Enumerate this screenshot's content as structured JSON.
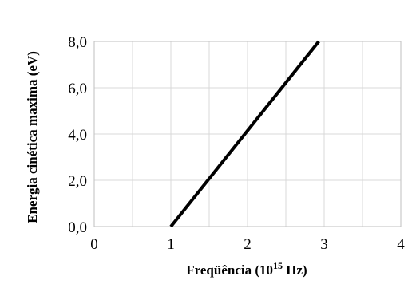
{
  "chart_data": {
    "type": "line",
    "title": "",
    "xlabel": "Freqüência (10",
    "xlabel_sup": "15",
    "xlabel_end": " Hz)",
    "ylabel": "Energia cinética maxima (eV)",
    "xlim": [
      0,
      4
    ],
    "ylim": [
      0,
      8
    ],
    "x_ticks": [
      0,
      1,
      2,
      3,
      4
    ],
    "x_tick_labels": [
      "0",
      "1",
      "2",
      "3",
      "4"
    ],
    "y_ticks": [
      0,
      2,
      4,
      6,
      8
    ],
    "y_tick_labels": [
      "0,0",
      "2,0",
      "4,0",
      "6,0",
      "8,0"
    ],
    "x_minor_grid": [
      0.5,
      1.5,
      2.5,
      3.5
    ],
    "grid": true,
    "series": [
      {
        "x": [
          1.0,
          2.93
        ],
        "y": [
          0.0,
          8.0
        ]
      }
    ],
    "line_color": "#000000"
  }
}
